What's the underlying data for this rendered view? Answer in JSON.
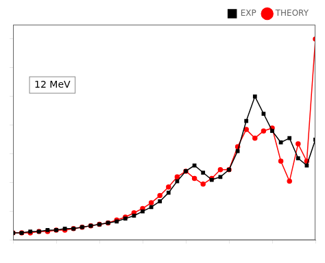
{
  "chart_data": {
    "type": "line",
    "series": [
      {
        "name": "EXP",
        "color": "#000000",
        "marker": "square",
        "x": [
          0,
          1,
          2,
          3,
          4,
          5,
          6,
          7,
          8,
          9,
          10,
          11,
          12,
          13,
          14,
          15,
          16,
          17,
          18,
          19,
          20,
          21,
          22,
          23,
          24,
          25,
          26,
          27,
          28,
          29,
          30,
          31,
          32,
          33,
          34,
          35
        ],
        "values": [
          0.05,
          0.05,
          0.06,
          0.06,
          0.07,
          0.07,
          0.08,
          0.08,
          0.09,
          0.1,
          0.11,
          0.12,
          0.13,
          0.15,
          0.17,
          0.2,
          0.23,
          0.27,
          0.33,
          0.41,
          0.48,
          0.52,
          0.47,
          0.42,
          0.44,
          0.49,
          0.62,
          0.83,
          1.0,
          0.88,
          0.76,
          0.68,
          0.71,
          0.57,
          0.52,
          0.7
        ]
      },
      {
        "name": "THEORY",
        "color": "#ff0000",
        "marker": "circle",
        "x": [
          0,
          1,
          2,
          3,
          4,
          5,
          6,
          7,
          8,
          9,
          10,
          11,
          12,
          13,
          14,
          15,
          16,
          17,
          18,
          19,
          20,
          21,
          22,
          23,
          24,
          25,
          26,
          27,
          28,
          29,
          30,
          31,
          32,
          33,
          34,
          35
        ],
        "values": [
          0.05,
          0.05,
          0.05,
          0.06,
          0.06,
          0.07,
          0.07,
          0.08,
          0.09,
          0.1,
          0.11,
          0.12,
          0.14,
          0.16,
          0.19,
          0.22,
          0.26,
          0.31,
          0.37,
          0.44,
          0.48,
          0.43,
          0.39,
          0.43,
          0.49,
          0.49,
          0.65,
          0.77,
          0.71,
          0.76,
          0.78,
          0.55,
          0.41,
          0.67,
          0.55,
          1.4
        ]
      }
    ],
    "annotations": [
      "12 MeV"
    ],
    "xlim": [
      0,
      35
    ],
    "xticks": [
      0,
      5,
      10,
      15,
      20,
      25,
      30,
      35
    ],
    "ylim": [
      0.0,
      1.5
    ],
    "yticks": [
      0,
      0.2,
      0.4,
      0.6,
      0.8,
      1.0,
      1.2,
      1.4
    ],
    "tick_labels": false,
    "grid": false,
    "legend": "upper right"
  }
}
